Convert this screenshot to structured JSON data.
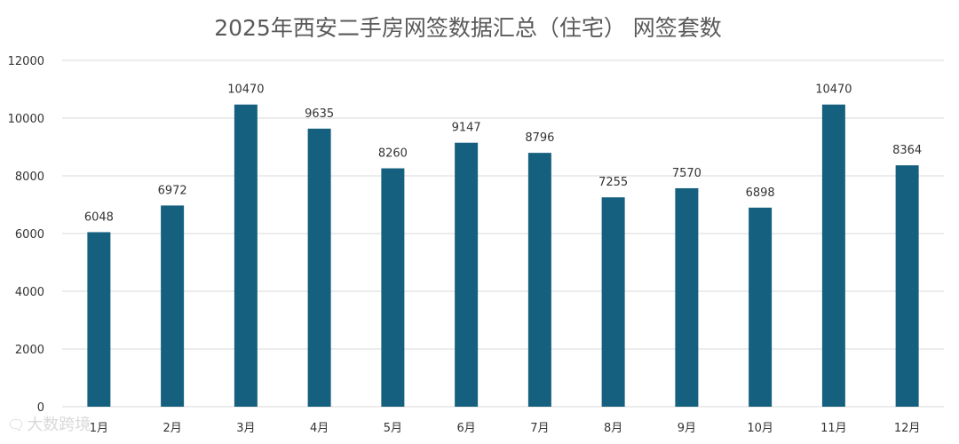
{
  "chart_data": {
    "type": "bar",
    "title": "2025年西安二手房网签数据汇总（住宅） 网签套数",
    "categories": [
      "1月",
      "2月",
      "3月",
      "4月",
      "5月",
      "6月",
      "7月",
      "8月",
      "9月",
      "10月",
      "11月",
      "12月"
    ],
    "values": [
      6048,
      6972,
      10470,
      9635,
      8260,
      9147,
      8796,
      7255,
      7570,
      6898,
      10470,
      8364
    ],
    "ylim": [
      0,
      12000
    ],
    "yticks": [
      0,
      2000,
      4000,
      6000,
      8000,
      10000,
      12000
    ],
    "grid": true,
    "bar_color": "#16607f",
    "grid_color": "#d9d9d9"
  },
  "watermark": {
    "icon": "chat-bubble-icon",
    "text": "大数跨境"
  }
}
